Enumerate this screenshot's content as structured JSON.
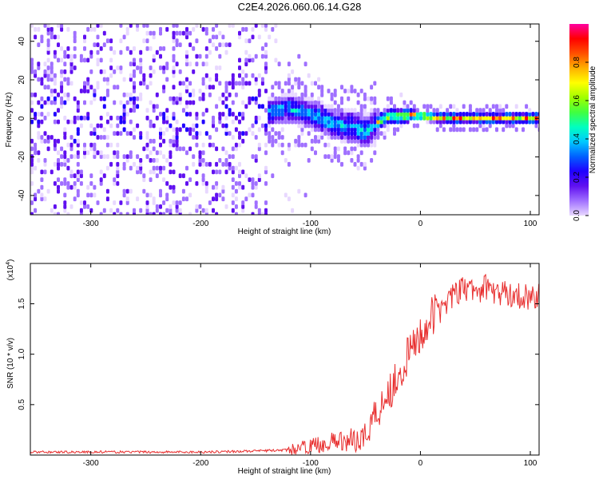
{
  "title": "C2E4.2026.060.06.14.G28",
  "chart_data": [
    {
      "type": "heatmap",
      "xlabel": "Height of straight line (km)",
      "ylabel": "Frequency (Hz)",
      "xlim": [
        -355,
        108
      ],
      "ylim": [
        -50,
        49
      ],
      "xticks": [
        -300,
        -200,
        -100,
        0,
        100
      ],
      "yticks": [
        -40,
        -20,
        0,
        20,
        40
      ],
      "colorbar": {
        "label": "Normalized spectral amplitude",
        "ticks": [
          0.0,
          0.2,
          0.4,
          0.6,
          0.8
        ],
        "colors": [
          "#e8d8ff",
          "#a070ff",
          "#6010f0",
          "#2000ff",
          "#0060ff",
          "#00c8ff",
          "#00ffc0",
          "#40ff40",
          "#a0ff00",
          "#ffff00",
          "#ffb000",
          "#ff5000",
          "#ff0000",
          "#ff00a0"
        ]
      },
      "ridge": {
        "x": [
          -270,
          -200,
          -140,
          -120,
          -100,
          -80,
          -60,
          -50,
          -40,
          -30,
          -20,
          -10,
          0,
          20,
          60,
          108
        ],
        "frequency": [
          1,
          1,
          3,
          5,
          2,
          -3,
          -5,
          -7,
          -2,
          1,
          1,
          2,
          1,
          0,
          0,
          0
        ]
      }
    },
    {
      "type": "line",
      "xlabel": "Height of straight line (km)",
      "ylabel": "SNR (10 * v/v)",
      "yscale_label": "(x10",
      "yscale_exp": "4",
      "xlim": [
        -355,
        108
      ],
      "ylim": [
        0,
        1.9
      ],
      "xticks": [
        -300,
        -200,
        -100,
        0,
        100
      ],
      "yticks": [
        0.5,
        1.0,
        1.5
      ],
      "series": [
        {
          "color": "#e83030",
          "x": [
            -355,
            -300,
            -200,
            -150,
            -120,
            -100,
            -80,
            -60,
            -50,
            -45,
            -40,
            -35,
            -30,
            -25,
            -20,
            -15,
            -10,
            -5,
            0,
            10,
            20,
            30,
            40,
            50,
            60,
            70,
            80,
            90,
            100,
            108
          ],
          "values": [
            0.03,
            0.03,
            0.03,
            0.04,
            0.05,
            0.09,
            0.13,
            0.15,
            0.2,
            0.35,
            0.4,
            0.55,
            0.6,
            0.7,
            0.8,
            0.9,
            1.0,
            1.1,
            1.2,
            1.35,
            1.5,
            1.58,
            1.65,
            1.62,
            1.67,
            1.6,
            1.6,
            1.58,
            1.57,
            1.57
          ]
        }
      ]
    }
  ]
}
